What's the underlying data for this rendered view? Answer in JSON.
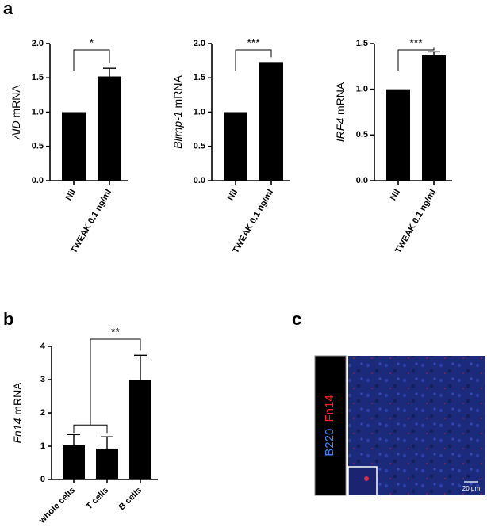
{
  "panels": [
    "a",
    "b",
    "c"
  ],
  "chart_data": [
    {
      "type": "bar",
      "ylabel_gene": "AID",
      "ylabel_rest": "mRNA",
      "categories": [
        "Nil",
        "TWEAK 0.1 ng/ml"
      ],
      "values": [
        1.0,
        1.52
      ],
      "errors": [
        null,
        0.12
      ],
      "color": "#000000",
      "ylim": [
        0,
        2
      ],
      "yticks": [
        {
          "value": 0,
          "label": "0.0"
        },
        {
          "value": 0.5,
          "label": "0.5"
        },
        {
          "value": 1,
          "label": "1.0"
        },
        {
          "value": 1.5,
          "label": "1.5"
        },
        {
          "value": 2,
          "label": "2.0"
        }
      ],
      "significance": "*"
    },
    {
      "type": "bar",
      "ylabel_gene": "Blimp-1",
      "ylabel_rest": "mRNA",
      "categories": [
        "Nil",
        "TWEAK 0.1 ng/ml"
      ],
      "values": [
        1.0,
        1.73
      ],
      "errors": [
        null,
        null
      ],
      "color": "#000000",
      "ylim": [
        0,
        2
      ],
      "yticks": [
        {
          "value": 0,
          "label": "0.0"
        },
        {
          "value": 0.5,
          "label": "0.5"
        },
        {
          "value": 1,
          "label": "1.0"
        },
        {
          "value": 1.5,
          "label": "1.5"
        },
        {
          "value": 2,
          "label": "2.0"
        }
      ],
      "significance": "***"
    },
    {
      "type": "bar",
      "ylabel_gene": "IRF4",
      "ylabel_rest": "mRNA",
      "categories": [
        "Nil",
        "TWEAK 0.1 ng/ml"
      ],
      "values": [
        1.0,
        1.37
      ],
      "errors": [
        null,
        0.04
      ],
      "color": "#000000",
      "ylim": [
        0,
        1.5
      ],
      "yticks": [
        {
          "value": 0,
          "label": "0.0"
        },
        {
          "value": 0.5,
          "label": "0.5"
        },
        {
          "value": 1,
          "label": "1.0"
        },
        {
          "value": 1.5,
          "label": "1.5"
        }
      ],
      "significance": "***"
    },
    {
      "type": "bar",
      "ylabel_gene": "Fn14",
      "ylabel_rest": "mRNA",
      "categories": [
        "whole cells",
        "T cells",
        "B cells"
      ],
      "values": [
        1.03,
        0.93,
        2.98
      ],
      "errors": [
        0.32,
        0.35,
        0.75
      ],
      "color": "#000000",
      "ylim": [
        0,
        4
      ],
      "yticks": [
        0,
        1,
        2,
        3,
        4
      ],
      "significance": "**"
    }
  ],
  "image": {
    "stain_1": "B220",
    "stain_2": "Fn14",
    "scale_bar": "20 μm"
  }
}
